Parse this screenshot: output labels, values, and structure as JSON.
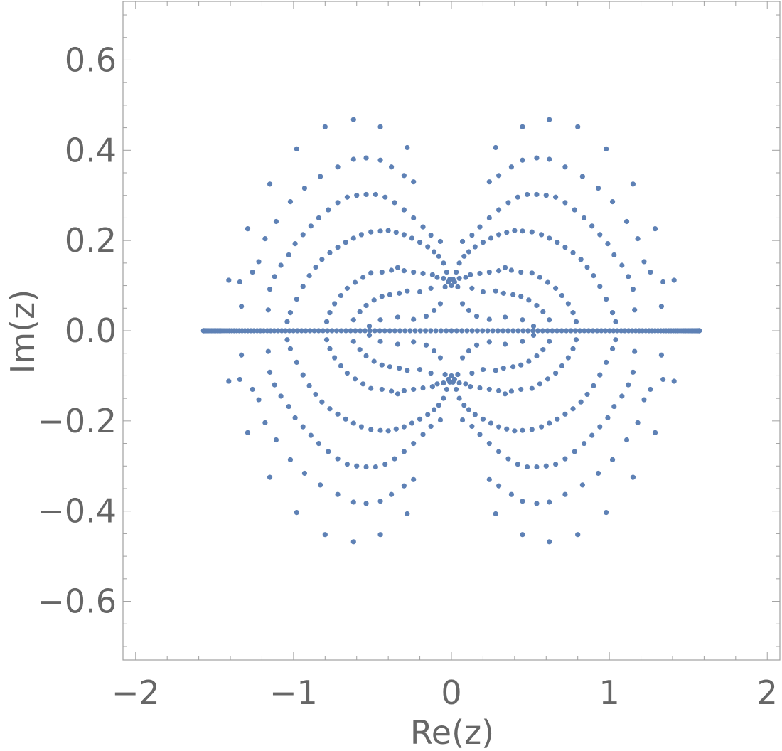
{
  "chart_data": {
    "type": "scatter",
    "xlabel": "Re(z)",
    "ylabel": "Im(z)",
    "xlim": [
      -2.08,
      2.08
    ],
    "ylim": [
      -0.73,
      0.73
    ],
    "x_ticks": [
      -2,
      -1,
      0,
      1,
      2
    ],
    "x_tick_labels": [
      "−2",
      "−1",
      "0",
      "1",
      "2"
    ],
    "y_ticks": [
      -0.6,
      -0.4,
      -0.2,
      0.0,
      0.2,
      0.4,
      0.6
    ],
    "y_tick_labels": [
      "−0.6",
      "−0.4",
      "−0.2",
      "0.0",
      "0.2",
      "0.4",
      "0.6"
    ],
    "grid": false,
    "legend": "none",
    "color": "#5e81b5",
    "symmetry": "points mirrored about the real axis (conjugate pairs) and about the imaginary axis",
    "real_axis_points": {
      "x_from": -1.57,
      "x_to": 1.57,
      "y": 0,
      "spacing": "dense near the ends, sparse near the center"
    },
    "upper_right_quadrant_points": [
      [
        0.62,
        0.468
      ],
      [
        0.8,
        0.452
      ],
      [
        0.45,
        0.452
      ],
      [
        0.98,
        0.403
      ],
      [
        0.28,
        0.406
      ],
      [
        1.15,
        0.325
      ],
      [
        1.29,
        0.226
      ],
      [
        1.41,
        0.112
      ],
      [
        0.54,
        0.383
      ],
      [
        0.62,
        0.38
      ],
      [
        0.45,
        0.378
      ],
      [
        0.38,
        0.363
      ],
      [
        0.72,
        0.363
      ],
      [
        0.83,
        0.342
      ],
      [
        0.3,
        0.344
      ],
      [
        0.93,
        0.316
      ],
      [
        0.24,
        0.33
      ],
      [
        1.02,
        0.286
      ],
      [
        1.11,
        0.242
      ],
      [
        1.18,
        0.204
      ],
      [
        1.22,
        0.153
      ],
      [
        1.26,
        0.13
      ],
      [
        1.34,
        0.108
      ],
      [
        1.33,
        0.054
      ],
      [
        0.48,
        0.302
      ],
      [
        0.54,
        0.302
      ],
      [
        0.6,
        0.3
      ],
      [
        0.42,
        0.296
      ],
      [
        0.66,
        0.296
      ],
      [
        0.36,
        0.284
      ],
      [
        0.72,
        0.284
      ],
      [
        0.3,
        0.268
      ],
      [
        0.78,
        0.268
      ],
      [
        0.24,
        0.25
      ],
      [
        0.84,
        0.25
      ],
      [
        0.18,
        0.23
      ],
      [
        0.89,
        0.232
      ],
      [
        0.13,
        0.212
      ],
      [
        0.94,
        0.213
      ],
      [
        0.07,
        0.198
      ],
      [
        0.99,
        0.193
      ],
      [
        1.03,
        0.168
      ],
      [
        1.08,
        0.145
      ],
      [
        1.12,
        0.12
      ],
      [
        1.15,
        0.092
      ],
      [
        1.16,
        0.046
      ],
      [
        0.4,
        0.222
      ],
      [
        0.45,
        0.221
      ],
      [
        0.35,
        0.218
      ],
      [
        0.51,
        0.219
      ],
      [
        0.3,
        0.213
      ],
      [
        0.57,
        0.213
      ],
      [
        0.25,
        0.205
      ],
      [
        0.62,
        0.205
      ],
      [
        0.2,
        0.196
      ],
      [
        0.67,
        0.196
      ],
      [
        0.15,
        0.186
      ],
      [
        0.72,
        0.185
      ],
      [
        0.11,
        0.175
      ],
      [
        0.77,
        0.173
      ],
      [
        0.08,
        0.165
      ],
      [
        0.82,
        0.158
      ],
      [
        0.05,
        0.15
      ],
      [
        0.86,
        0.141
      ],
      [
        0.03,
        0.13
      ],
      [
        0.9,
        0.122
      ],
      [
        0.94,
        0.098
      ],
      [
        0.98,
        0.07
      ],
      [
        1.02,
        0.04
      ],
      [
        1.04,
        0.02
      ],
      [
        0.34,
        0.14
      ],
      [
        0.3,
        0.133
      ],
      [
        0.38,
        0.134
      ],
      [
        0.24,
        0.13
      ],
      [
        0.44,
        0.13
      ],
      [
        0.18,
        0.127
      ],
      [
        0.51,
        0.128
      ],
      [
        0.12,
        0.124
      ],
      [
        0.56,
        0.118
      ],
      [
        0.09,
        0.118
      ],
      [
        0.61,
        0.107
      ],
      [
        0.05,
        0.116
      ],
      [
        0.66,
        0.094
      ],
      [
        0.7,
        0.078
      ],
      [
        0.74,
        0.06
      ],
      [
        0.77,
        0.04
      ],
      [
        0.79,
        0.02
      ],
      [
        0.0,
        0.1
      ],
      [
        0.01,
        0.114
      ],
      [
        0.02,
        0.108
      ],
      [
        0.04,
        0.097
      ],
      [
        0.28,
        0.088
      ],
      [
        0.33,
        0.083
      ],
      [
        0.39,
        0.08
      ],
      [
        0.44,
        0.076
      ],
      [
        0.2,
        0.086
      ],
      [
        0.13,
        0.094
      ],
      [
        0.49,
        0.068
      ],
      [
        0.54,
        0.056
      ],
      [
        0.58,
        0.042
      ],
      [
        0.62,
        0.024
      ],
      [
        0.07,
        0.06
      ],
      [
        0.11,
        0.045
      ],
      [
        0.16,
        0.032
      ],
      [
        0.24,
        0.025
      ],
      [
        0.34,
        0.03
      ],
      [
        0.45,
        0.024
      ],
      [
        0.52,
        0.01
      ]
    ]
  }
}
